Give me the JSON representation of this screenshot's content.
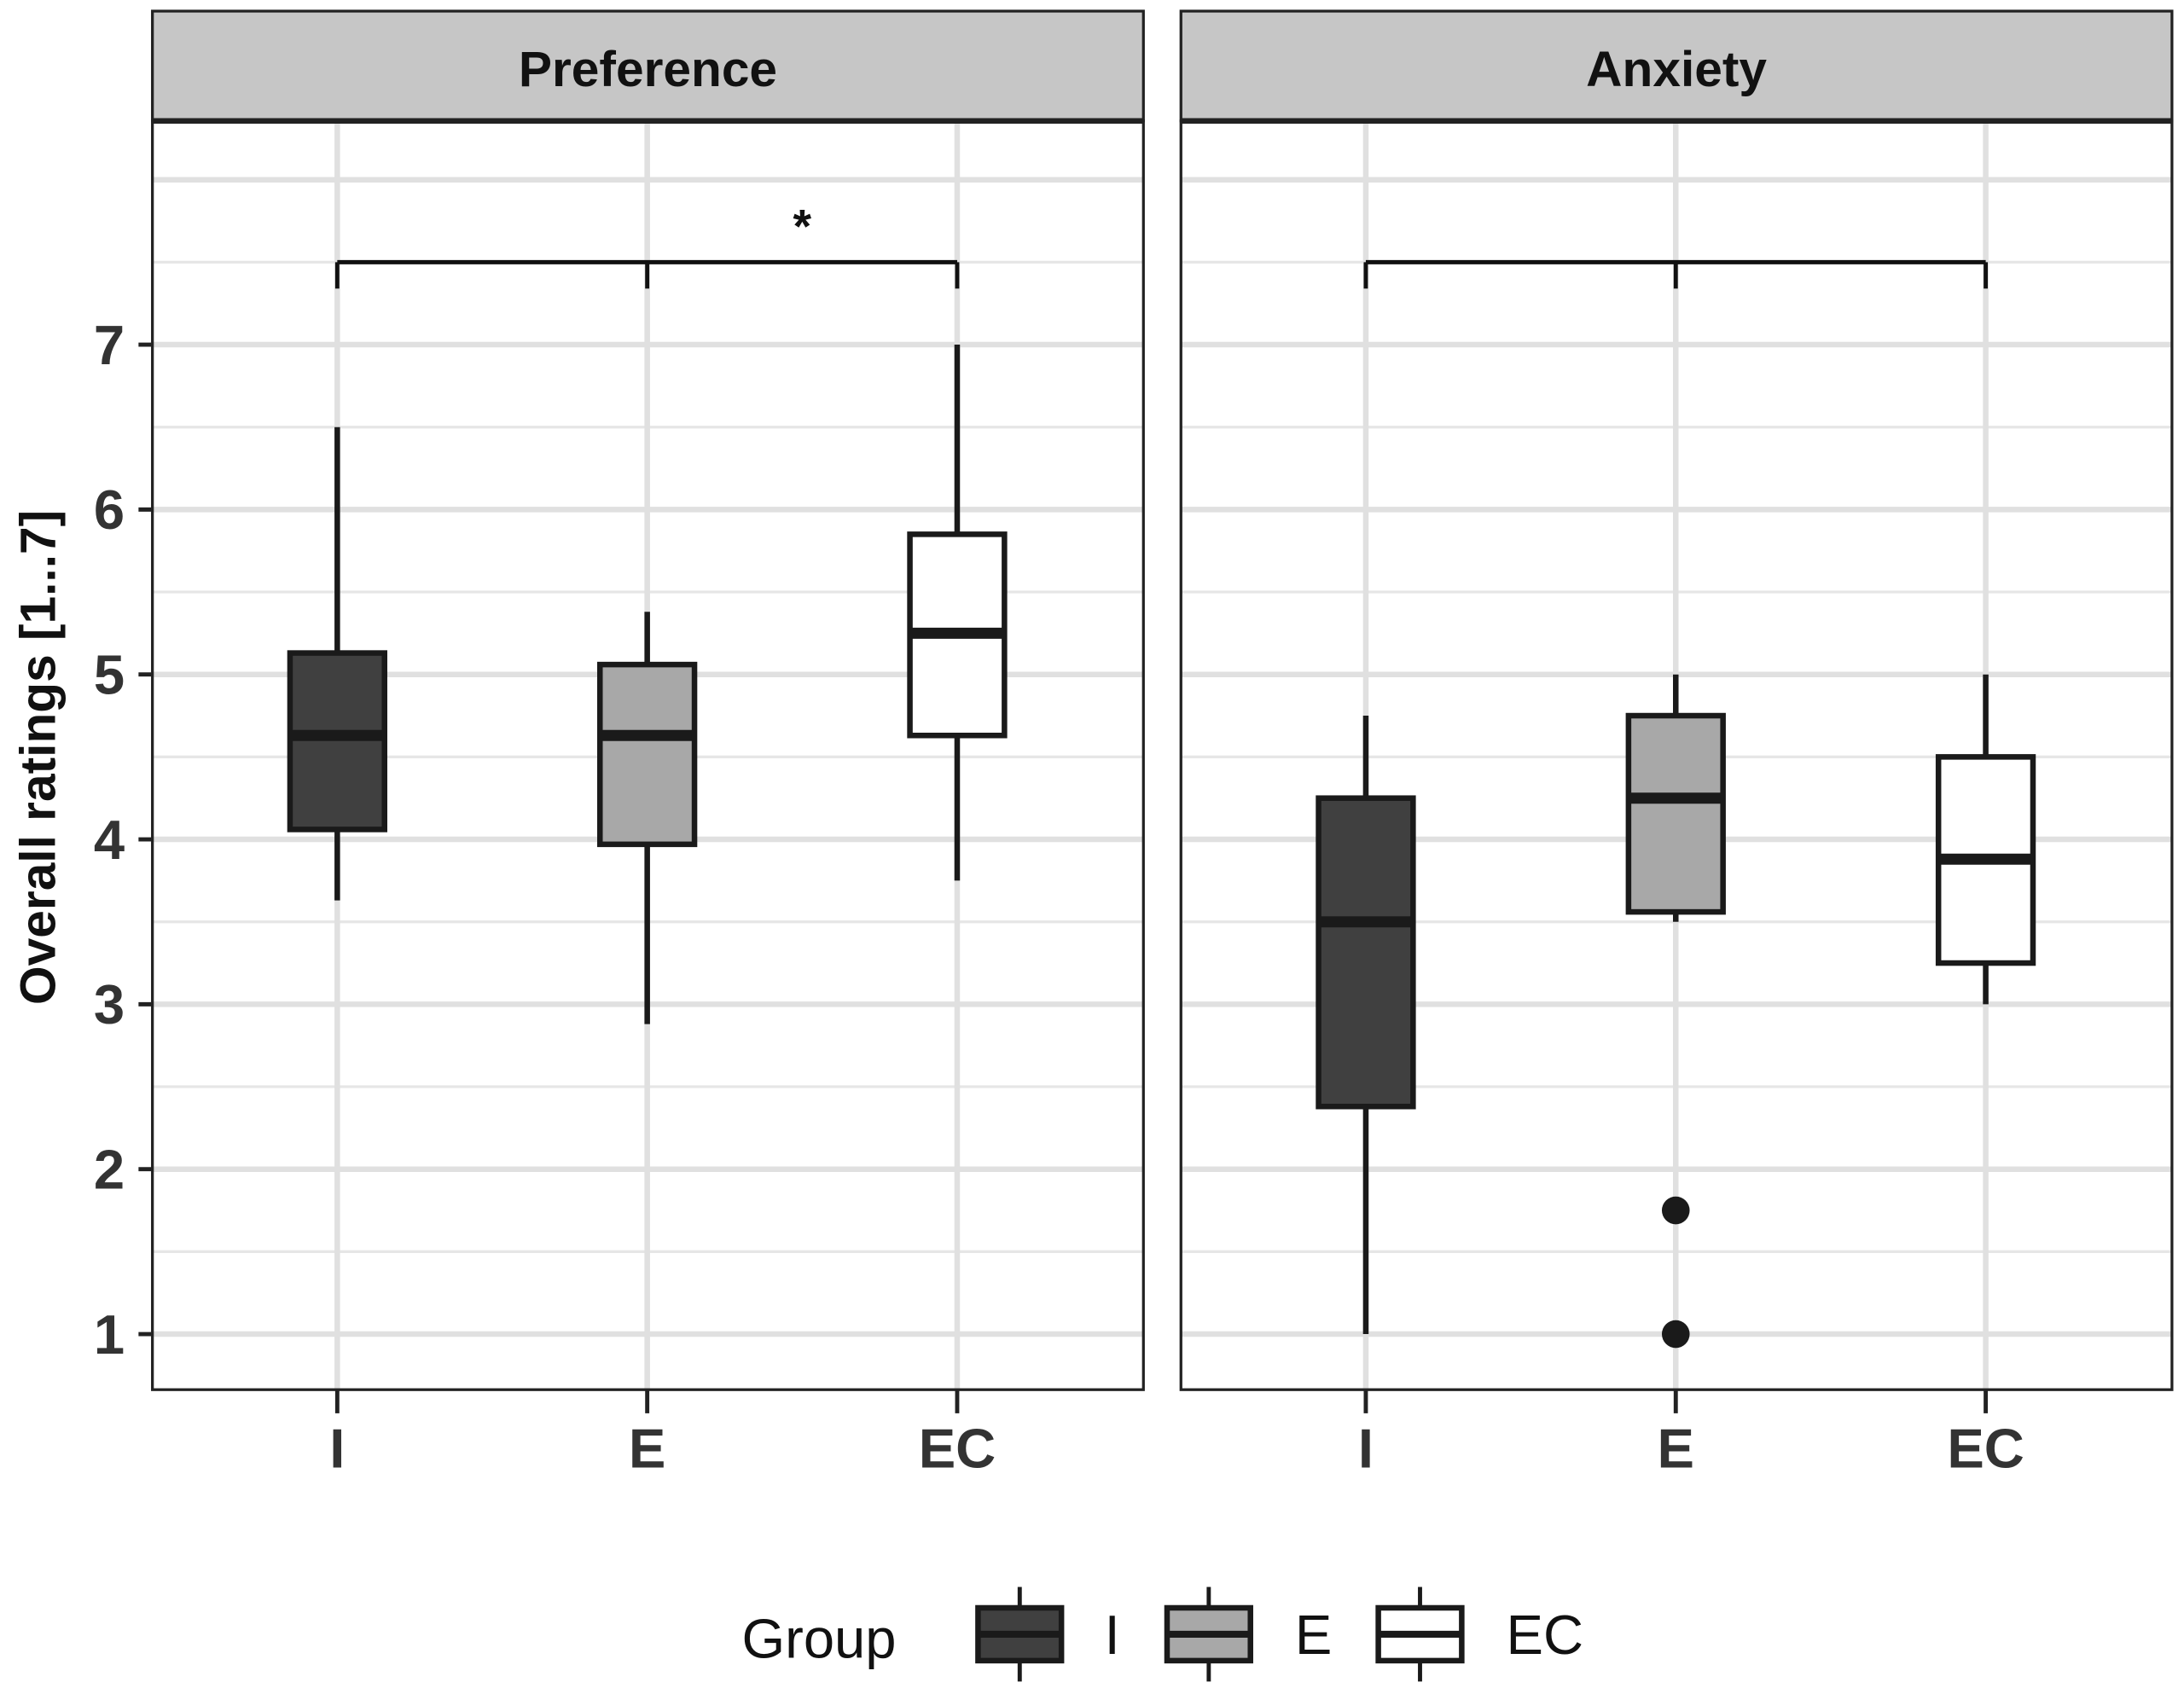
{
  "chart_data": {
    "type": "boxplot",
    "ylabel": "Overall ratings [1...7]",
    "xlabel": "",
    "ylim": [
      0.65,
      8.4
    ],
    "yticks": [
      1,
      2,
      3,
      4,
      5,
      6,
      7
    ],
    "grid": true,
    "categories": [
      "I",
      "E",
      "EC"
    ],
    "colors": {
      "I": "#404040",
      "E": "#a8a8a8",
      "EC": "#ffffff"
    },
    "panels": [
      {
        "title": "Preference",
        "boxes": [
          {
            "group": "I",
            "whisker_low": 3.63,
            "q1": 4.06,
            "median": 4.63,
            "q3": 5.13,
            "whisker_high": 6.5,
            "outliers": []
          },
          {
            "group": "E",
            "whisker_low": 2.88,
            "q1": 3.97,
            "median": 4.63,
            "q3": 5.06,
            "whisker_high": 5.38,
            "outliers": []
          },
          {
            "group": "EC",
            "whisker_low": 3.75,
            "q1": 4.63,
            "median": 5.25,
            "q3": 5.85,
            "whisker_high": 7.0,
            "outliers": []
          }
        ],
        "bracket": {
          "y": 7.5,
          "label": "*"
        }
      },
      {
        "title": "Anxiety",
        "boxes": [
          {
            "group": "I",
            "whisker_low": 1.0,
            "q1": 2.38,
            "median": 3.5,
            "q3": 4.25,
            "whisker_high": 4.75,
            "outliers": []
          },
          {
            "group": "E",
            "whisker_low": 3.5,
            "q1": 3.56,
            "median": 4.25,
            "q3": 4.75,
            "whisker_high": 5.0,
            "outliers": [
              1.75,
              1.0
            ]
          },
          {
            "group": "EC",
            "whisker_low": 3.0,
            "q1": 3.25,
            "median": 3.88,
            "q3": 4.5,
            "whisker_high": 5.0,
            "outliers": []
          }
        ],
        "bracket": {
          "y": 7.5,
          "label": ""
        }
      }
    ],
    "legend": {
      "title": "Group",
      "position": "bottom",
      "entries": [
        "I",
        "E",
        "EC"
      ]
    }
  }
}
